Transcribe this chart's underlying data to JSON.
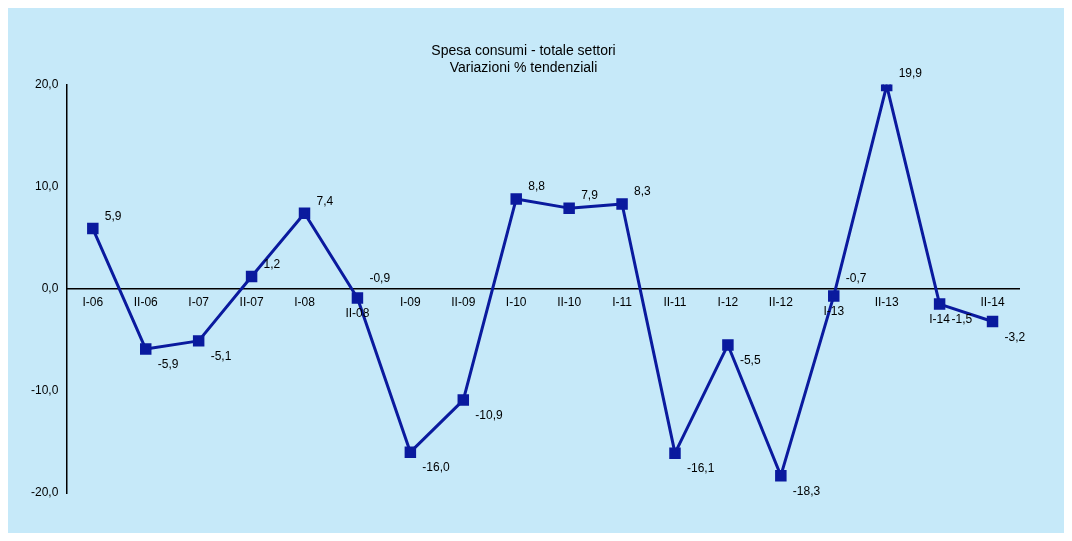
{
  "chart_data": {
    "type": "line",
    "title": "Spesa consumi - totale settori",
    "subtitle": "Variazioni % tendenziali",
    "categories": [
      "I-06",
      "II-06",
      "I-07",
      "II-07",
      "I-08",
      "II-08",
      "I-09",
      "II-09",
      "I-10",
      "II-10",
      "I-11",
      "II-11",
      "I-12",
      "II-12",
      "I-13",
      "II-13",
      "I-14",
      "II-14"
    ],
    "series": [
      {
        "color": "#0a1a9e",
        "values": [
          5.9,
          -5.9,
          -5.1,
          1.2,
          7.4,
          -0.9,
          -16.0,
          -10.9,
          8.8,
          7.9,
          8.3,
          -16.1,
          -5.5,
          -18.3,
          -0.7,
          19.9,
          -1.5,
          -3.2
        ],
        "value_labels": [
          "5,9",
          "-5,9",
          "-5,1",
          "1,2",
          "7,4",
          "-0,9",
          "-16,0",
          "-10,9",
          "8,8",
          "7,9",
          "8,3",
          "-16,1",
          "-5,5",
          "-18,3",
          "-0,7",
          "19,9",
          "-1,5",
          "-3,2"
        ]
      }
    ],
    "ylim": [
      -20,
      20
    ],
    "yticks": [
      {
        "value": -20,
        "label": "-20,0"
      },
      {
        "value": -10,
        "label": "-10,0"
      },
      {
        "value": 0,
        "label": "0,0"
      },
      {
        "value": 10,
        "label": "10,0"
      },
      {
        "value": 20,
        "label": "20,0"
      }
    ],
    "grid": false,
    "legend": false,
    "marker": "square",
    "line_style": "solid"
  }
}
